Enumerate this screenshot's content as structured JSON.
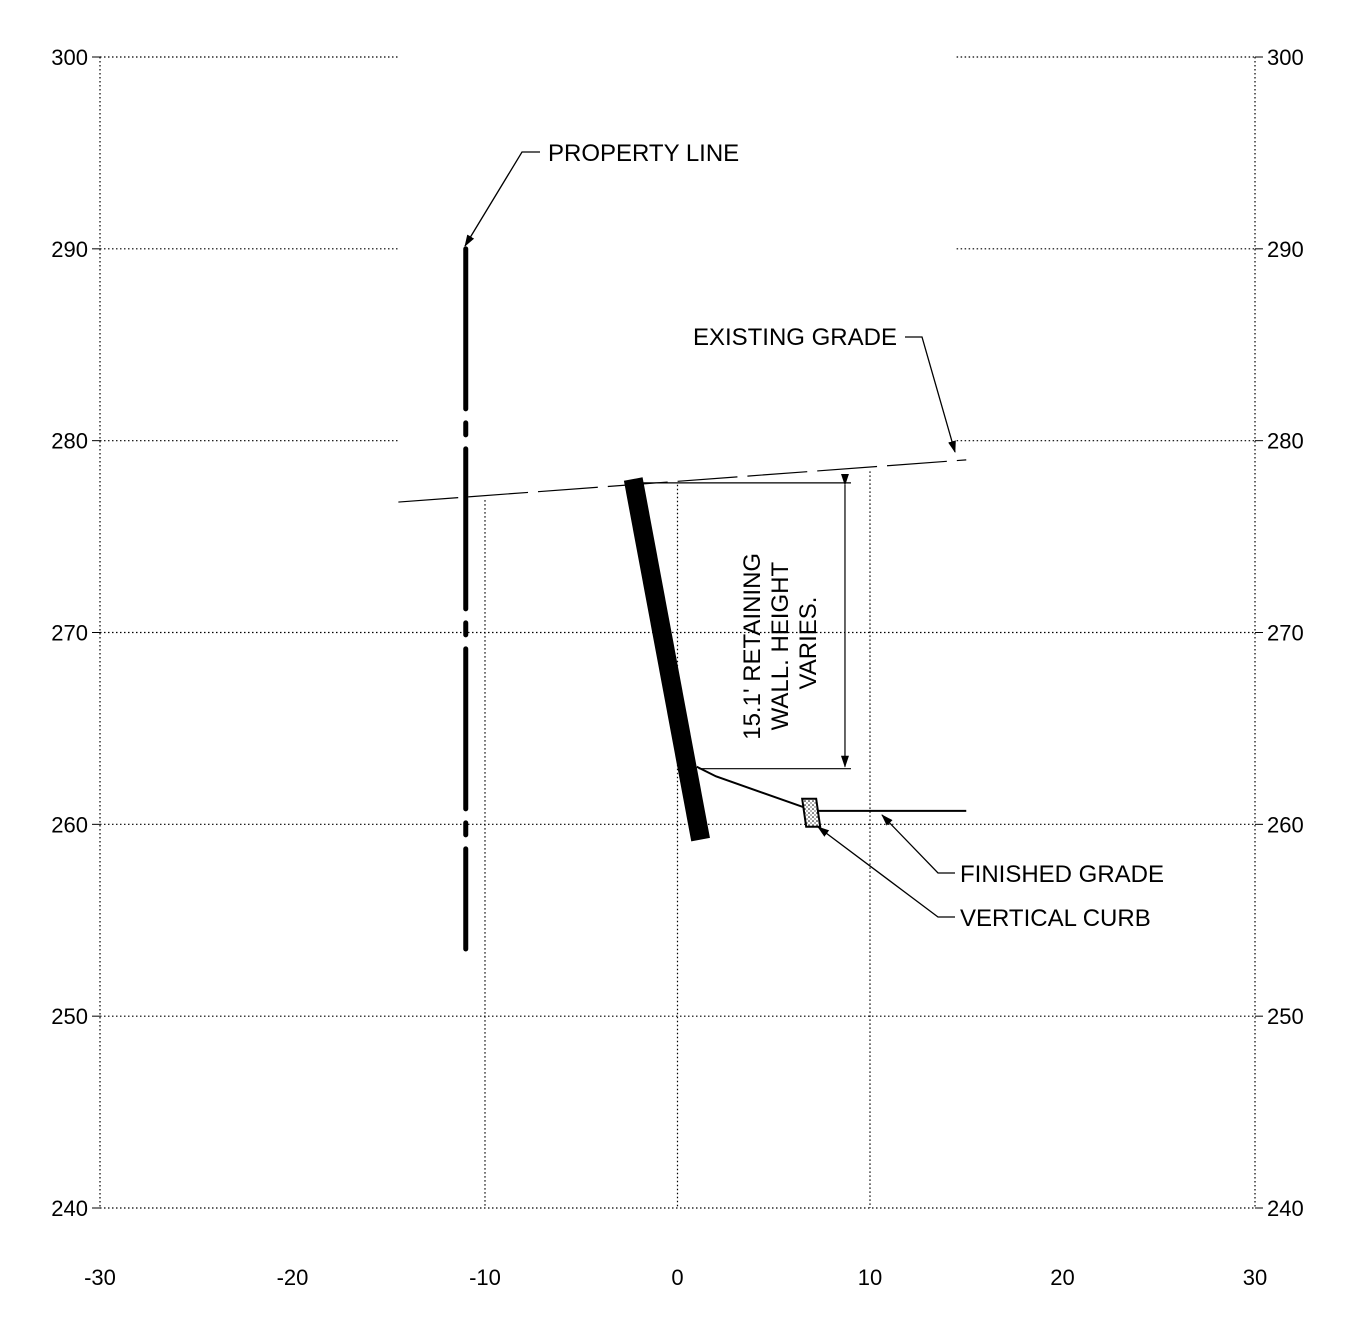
{
  "chart_data": {
    "type": "cross-section",
    "x_ticks": [
      "-30",
      "-20",
      "-10",
      "0",
      "10",
      "20",
      "30"
    ],
    "y_ticks": [
      "240",
      "250",
      "260",
      "270",
      "280",
      "290",
      "300"
    ],
    "xlim": [
      -30,
      30
    ],
    "ylim": [
      240,
      300
    ],
    "grid": true,
    "annotations": {
      "property_line": "PROPERTY LINE",
      "existing_grade": "EXISTING GRADE",
      "finished_grade": "FINISHED GRADE",
      "vertical_curb": "VERTICAL CURB",
      "wall_height": [
        "15.1' RETAINING",
        "WALL. HEIGHT",
        "VARIES."
      ]
    },
    "property_line": {
      "x": -11,
      "y_top": 290,
      "y_bottom": 253.5
    },
    "existing_grade": [
      [
        -14.5,
        276.8
      ],
      [
        15,
        279
      ]
    ],
    "retaining_wall": {
      "top": [
        -2.3,
        278
      ],
      "bottom": [
        1.2,
        259.2
      ]
    },
    "wall_height_dim": {
      "top": 277.8,
      "bottom": 262.9,
      "x": 8.7
    },
    "finished_grade": [
      [
        1.0,
        263.0
      ],
      [
        2.0,
        262.5
      ],
      [
        7.1,
        260.7
      ],
      [
        15,
        260.7
      ]
    ],
    "curb": {
      "x": 7.1,
      "y": 260.5
    }
  }
}
